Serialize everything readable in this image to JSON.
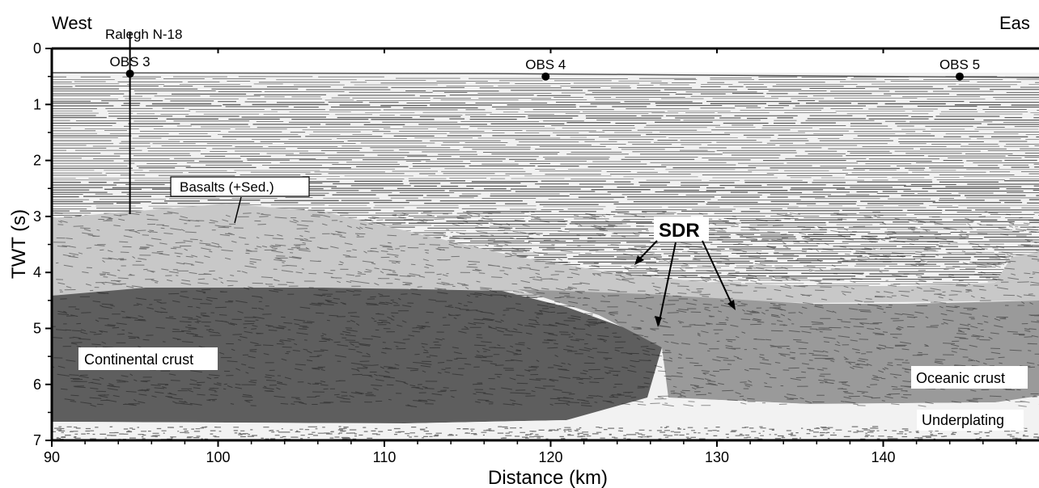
{
  "figure": {
    "direction_left": "West",
    "direction_right": "Eas",
    "well_label": "Ralegh N-18",
    "xlabel": "Distance (km)",
    "ylabel": "TWT (s)",
    "x_ticks": [
      "90",
      "100",
      "110",
      "120",
      "130",
      "140"
    ],
    "y_ticks": [
      "0",
      "1",
      "2",
      "3",
      "4",
      "5",
      "6",
      "7"
    ],
    "obs": [
      {
        "label": "OBS 3",
        "distance_km": 94.7,
        "twt_s": 0.45
      },
      {
        "label": "OBS 4",
        "distance_km": 119.7,
        "twt_s": 0.5
      },
      {
        "label": "OBS 5",
        "distance_km": 144.6,
        "twt_s": 0.5
      }
    ],
    "units": {
      "basalts": "Basalts (+Sed.)",
      "sdr": "SDR",
      "continental": "Continental crust",
      "oceanic": "Oceanic crust",
      "underplating": "Underplating"
    },
    "colors": {
      "basalts_fill": "#c8c8c8",
      "oceanic_fill": "#9a9a9a",
      "continental_fill": "#5e5e5e",
      "underplating_fill": "#f2f2f2"
    }
  }
}
